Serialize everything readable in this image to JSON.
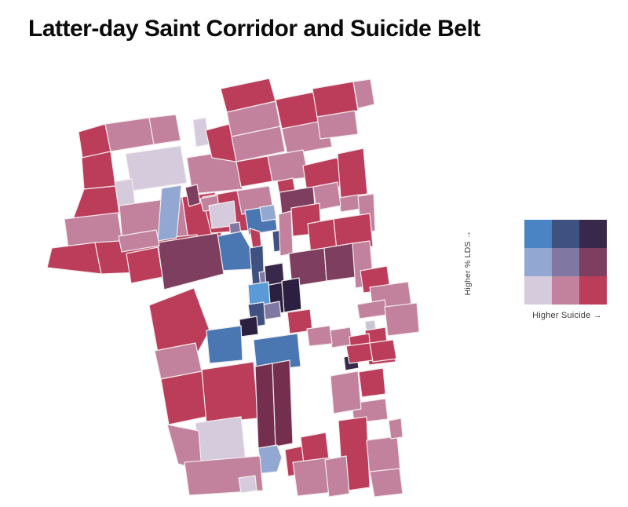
{
  "title": "Latter-day Saint Corridor and Suicide Belt",
  "legend": {
    "y_label": "Higher % LDS →",
    "x_label": "Higher Suicide →",
    "cell_colors": [
      "#4a84c4",
      "#3f5181",
      "#38284a",
      "#92a7d1",
      "#8177a3",
      "#7d3e5f",
      "#d5cbdc",
      "#c2819c",
      "#bb3d5a"
    ]
  },
  "map": {
    "background": "#ffffff",
    "stroke": "#f2ecef",
    "stroke_width": 1.2,
    "palette": [
      "#4a84c4",
      "#3f5181",
      "#38284a",
      "#92a7d1",
      "#8177a3",
      "#7d3e5f",
      "#d5cbdc",
      "#c2819c",
      "#bb3d5a",
      "#5a9bd7",
      "#2b2040",
      "#c9c5d3",
      "#742f4f",
      "#4a77b2"
    ],
    "counties": [
      {
        "p": "100,168 134,158 141,193 105,201",
        "c": 8
      },
      {
        "p": "134,158 190,150 196,184 141,193",
        "c": 7
      },
      {
        "p": "190,150 224,146 230,179 196,184",
        "c": 7
      },
      {
        "p": "246,153 262,150 266,184 250,187",
        "c": 6
      },
      {
        "p": "160,196 230,186 238,233 168,243",
        "c": 6
      },
      {
        "p": "143,232 168,228 172,261 147,264",
        "c": 6
      },
      {
        "p": "104,201 141,193 147,237 107,241",
        "c": 8
      },
      {
        "p": "107,241 147,237 152,273 93,279",
        "c": 8
      },
      {
        "p": "152,262 232,251 240,306 156,309",
        "c": 7
      },
      {
        "p": "232,251 274,245 282,301 240,306",
        "c": 8
      },
      {
        "p": "82,279 150,271 156,309 87,316",
        "c": 7
      },
      {
        "p": "66,316 121,309 129,349 60,341",
        "c": 8
      },
      {
        "p": "121,309 201,304 207,346 129,349",
        "c": 8
      },
      {
        "p": "201,304 251,299 257,339 207,346",
        "c": 8
      },
      {
        "p": "258,251 301,243 331,253 323,293 269,297",
        "c": 8
      },
      {
        "p": "238,201 301,191 309,241 245,247",
        "c": 7
      },
      {
        "p": "262,166 311,153 326,178 318,209 270,201",
        "c": 8
      },
      {
        "p": "281,113 343,100 351,129 289,143",
        "c": 8
      },
      {
        "p": "289,143 351,129 357,161 295,174",
        "c": 7
      },
      {
        "p": "351,127 421,113 431,151 359,164",
        "c": 8
      },
      {
        "p": "295,174 357,161 363,193 301,206",
        "c": 7
      },
      {
        "p": "359,164 416,153 423,187 366,197",
        "c": 7
      },
      {
        "p": "301,206 341,199 347,231 307,238",
        "c": 8
      },
      {
        "p": "341,199 386,191 393,226 347,231",
        "c": 7
      },
      {
        "p": "386,211 429,201 441,226 421,253 391,245",
        "c": 8
      },
      {
        "p": "353,231 373,227 379,259 359,263",
        "c": 8
      },
      {
        "p": "398,113 450,104 456,141 404,149",
        "c": 8
      },
      {
        "p": "450,104 472,101 477,133 456,138",
        "c": 7
      },
      {
        "p": "404,149 452,141 456,171 408,177",
        "c": 7
      },
      {
        "p": "430,196 463,189 468,247 434,252",
        "c": 8
      },
      {
        "p": "432,252 458,248 460,266 434,270",
        "c": 7
      },
      {
        "p": "456,250 476,247 478,294 460,297",
        "c": 7
      },
      {
        "p": "356,245 399,238 403,285 361,291",
        "c": 5
      },
      {
        "p": "399,238 430,232 434,262 403,268",
        "c": 7
      },
      {
        "p": "206,240 231,236 225,303 201,307",
        "c": 3
      },
      {
        "p": "236,239 251,235 255,259 241,263",
        "c": 5
      },
      {
        "p": "302,243 343,237 348,267 308,273",
        "c": 7
      },
      {
        "p": "255,253 277,249 279,267 259,269",
        "c": 7
      },
      {
        "p": "266,262 298,256 301,287 270,291",
        "c": 6
      },
      {
        "p": "312,268 349,262 353,293 317,299",
        "c": 13
      },
      {
        "p": "331,264 349,261 352,279 334,282",
        "c": 3
      },
      {
        "p": "318,291 331,295 333,313 322,317",
        "c": 8
      },
      {
        "p": "347,295 359,293 361,319 349,321",
        "c": 1
      },
      {
        "p": "292,285 305,283 307,299 294,301",
        "c": 4
      },
      {
        "p": "277,301 307,295 323,323 321,343 279,345",
        "c": 13
      },
      {
        "p": "318,316 335,313 337,377 323,379",
        "c": 1
      },
      {
        "p": "355,273 371,269 373,323 357,326",
        "c": 7
      },
      {
        "p": "371,265 407,259 409,297 373,301",
        "c": 8
      },
      {
        "p": "201,309 277,297 285,349 209,369",
        "c": 5
      },
      {
        "p": "161,323 201,315 207,353 167,361",
        "c": 8
      },
      {
        "p": "151,301 199,293 203,313 155,321",
        "c": 7
      },
      {
        "p": "190,389 247,367 267,421 239,473 201,449",
        "c": 8
      },
      {
        "p": "392,285 425,279 429,319 396,324",
        "c": 8
      },
      {
        "p": "425,279 471,272 475,314 429,319",
        "c": 8
      },
      {
        "p": "368,323 413,316 416,358 372,365",
        "c": 5
      },
      {
        "p": "413,316 449,310 453,353 416,358",
        "c": 5
      },
      {
        "p": "449,310 471,307 476,363 453,367",
        "c": 7
      },
      {
        "p": "459,345 493,339 497,369 463,373",
        "c": 8
      },
      {
        "p": "330,347 346,344 348,363 332,366",
        "c": 4
      },
      {
        "p": "337,339 360,335 362,360 339,364",
        "c": 2
      },
      {
        "p": "338,364 359,360 362,398 341,401",
        "c": 10
      },
      {
        "p": "359,358 381,354 384,394 362,398",
        "c": 10
      },
      {
        "p": "316,363 342,359 344,387 318,390",
        "c": 9
      },
      {
        "p": "336,388 356,384 358,404 338,407",
        "c": 4
      },
      {
        "p": "316,388 336,385 338,414 320,417",
        "c": 1
      },
      {
        "p": "305,407 327,403 329,426 307,429",
        "c": 10
      },
      {
        "p": "366,398 395,394 398,421 369,425",
        "c": 8
      },
      {
        "p": "263,421 307,415 309,459 267,463",
        "c": 13
      },
      {
        "p": "323,433 379,425 383,467 327,473",
        "c": 13
      },
      {
        "p": "471,366 520,359 524,389 475,395",
        "c": 7
      },
      {
        "p": "455,388 490,382 493,401 458,406",
        "c": 7
      },
      {
        "p": "420,421 446,417 449,439 423,443",
        "c": 7
      },
      {
        "p": "391,419 420,415 423,438 394,441",
        "c": 7
      },
      {
        "p": "465,410 477,408 479,421 467,423",
        "c": 11
      },
      {
        "p": "465,421 491,417 493,438 467,441",
        "c": 8
      },
      {
        "p": "445,429 470,425 472,446 447,449",
        "c": 8
      },
      {
        "p": "467,443 501,438 504,461 470,465",
        "c": 8
      },
      {
        "p": "490,391 531,386 534,423 494,428",
        "c": 7
      },
      {
        "p": "438,455 455,452 457,469 440,472",
        "c": 2
      },
      {
        "p": "448,514 491,508 494,534 451,539",
        "c": 7
      },
      {
        "p": "421,479 456,473 460,521 425,527",
        "c": 7
      },
      {
        "p": "441,441 471,437 475,459 445,463",
        "c": 8
      },
      {
        "p": "471,437 501,433 505,457 475,461",
        "c": 8
      },
      {
        "p": "457,474 488,469 491,502 461,506",
        "c": 8
      },
      {
        "p": "431,536 467,531 471,621 437,626",
        "c": 8
      },
      {
        "p": "467,561 506,556 510,601 471,606",
        "c": 7
      },
      {
        "p": "471,601 509,597 513,629 477,633",
        "c": 7
      },
      {
        "p": "495,536 511,533 513,557 498,559",
        "c": 7
      },
      {
        "p": "197,447 249,437 257,473 205,483",
        "c": 7
      },
      {
        "p": "205,483 257,473 263,531 215,541",
        "c": 8
      },
      {
        "p": "257,471 323,461 329,533 263,539",
        "c": 8
      },
      {
        "p": "325,467 347,463 351,569 329,573",
        "c": 12
      },
      {
        "p": "347,463 369,459 373,565 351,569",
        "c": 12
      },
      {
        "p": "329,571 353,567 359,583 353,601 333,603",
        "c": 3
      },
      {
        "p": "249,539 307,531 313,589 255,597",
        "c": 6
      },
      {
        "p": "213,541 253,549 257,599 227,591",
        "c": 7
      },
      {
        "p": "235,589 331,581 335,625 241,631",
        "c": 7
      },
      {
        "p": "304,609 325,606 327,625 307,628",
        "c": 6
      },
      {
        "p": "363,573 393,567 397,601 367,607",
        "c": 8
      },
      {
        "p": "383,557 415,551 419,585 387,591",
        "c": 8
      },
      {
        "p": "373,589 421,583 425,627 379,632",
        "c": 7
      },
      {
        "p": "414,586 441,581 445,629 419,633",
        "c": 7
      }
    ]
  }
}
